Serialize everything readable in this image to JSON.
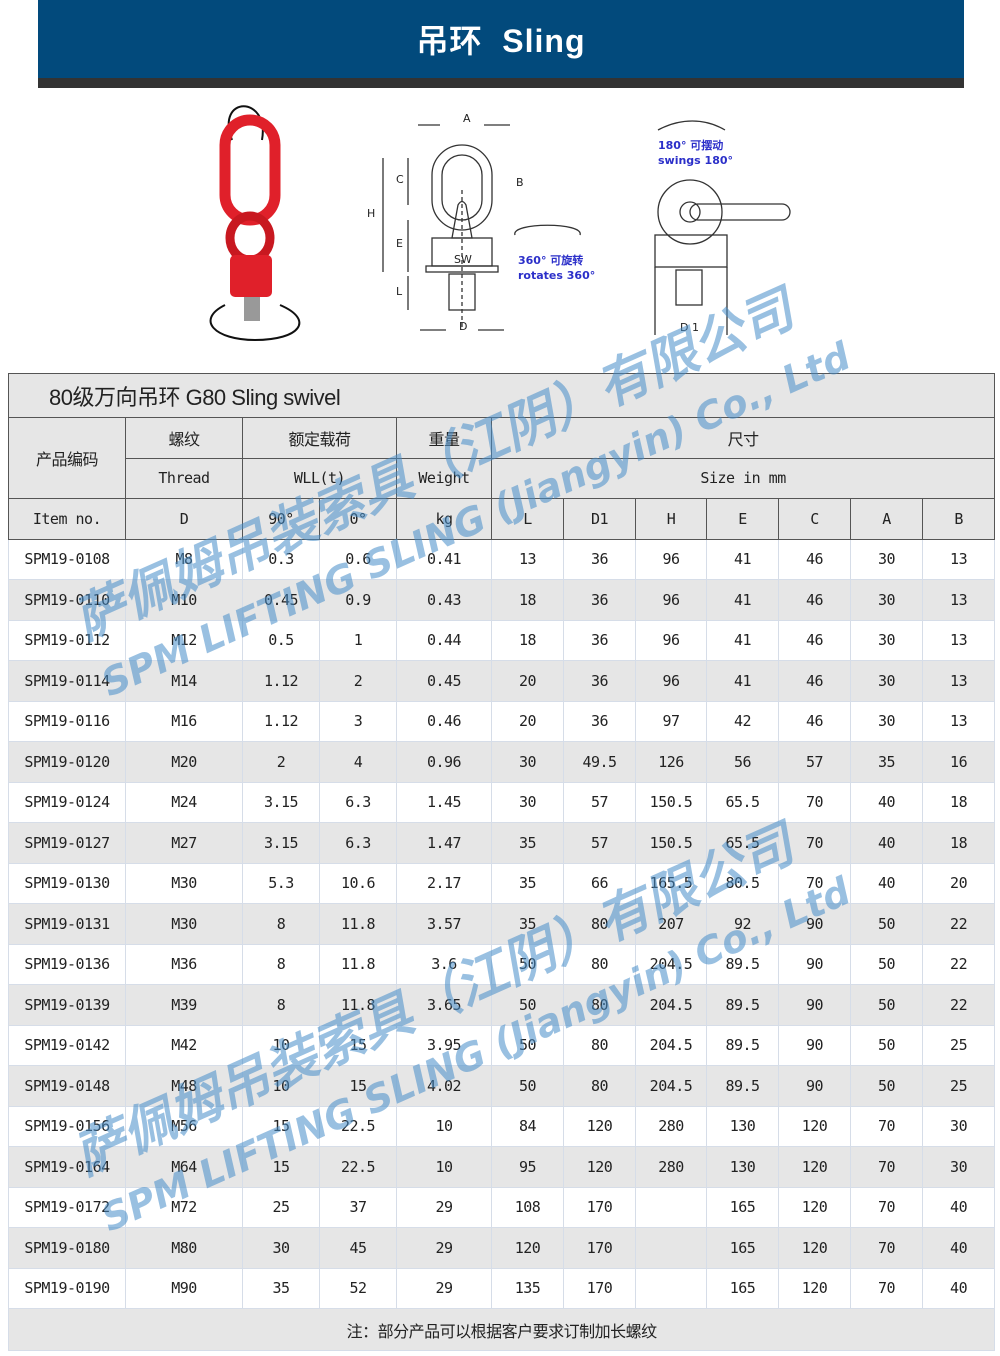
{
  "banner": {
    "title": "吊环  Sling"
  },
  "figures": {
    "dims": {
      "A": "A",
      "B": "B",
      "C": "C",
      "H": "H",
      "E": "E",
      "SW": "SW",
      "L": "L",
      "D": "D",
      "D1": "D 1"
    },
    "rotate_cn": "360°  可旋转",
    "rotate_en": "rotates 360°",
    "swing_cn": "180°  可摆动",
    "swing_en": "swings 180°",
    "colors": {
      "product": "#e0202a",
      "annotation": "#2b2fc9"
    }
  },
  "table": {
    "title": "80级万向吊环 G80 Sling swivel",
    "headers": {
      "code_cn": "产品编码",
      "thread_cn": "螺纹",
      "wll_cn": "额定载荷",
      "weight_cn": "重量",
      "size_cn": "尺寸",
      "thread_en": "Thread",
      "wll_en": "WLL(t)",
      "weight_en": "Weight",
      "size_en": "Size in mm",
      "item": "Item no.",
      "d": "D",
      "deg90": "90°",
      "deg0": "0°",
      "kg": "kg",
      "cols": [
        "L",
        "D1",
        "H",
        "E",
        "C",
        "A",
        "B"
      ]
    },
    "rows": [
      [
        "SPM19-0108",
        "M8",
        "0.3",
        "0.6",
        "0.41",
        "13",
        "36",
        "96",
        "41",
        "46",
        "30",
        "13"
      ],
      [
        "SPM19-0110",
        "M10",
        "0.45",
        "0.9",
        "0.43",
        "18",
        "36",
        "96",
        "41",
        "46",
        "30",
        "13"
      ],
      [
        "SPM19-0112",
        "M12",
        "0.5",
        "1",
        "0.44",
        "18",
        "36",
        "96",
        "41",
        "46",
        "30",
        "13"
      ],
      [
        "SPM19-0114",
        "M14",
        "1.12",
        "2",
        "0.45",
        "20",
        "36",
        "96",
        "41",
        "46",
        "30",
        "13"
      ],
      [
        "SPM19-0116",
        "M16",
        "1.12",
        "3",
        "0.46",
        "20",
        "36",
        "97",
        "42",
        "46",
        "30",
        "13"
      ],
      [
        "SPM19-0120",
        "M20",
        "2",
        "4",
        "0.96",
        "30",
        "49.5",
        "126",
        "56",
        "57",
        "35",
        "16"
      ],
      [
        "SPM19-0124",
        "M24",
        "3.15",
        "6.3",
        "1.45",
        "30",
        "57",
        "150.5",
        "65.5",
        "70",
        "40",
        "18"
      ],
      [
        "SPM19-0127",
        "M27",
        "3.15",
        "6.3",
        "1.47",
        "35",
        "57",
        "150.5",
        "65.5",
        "70",
        "40",
        "18"
      ],
      [
        "SPM19-0130",
        "M30",
        "5.3",
        "10.6",
        "2.17",
        "35",
        "66",
        "165.5",
        "80.5",
        "70",
        "40",
        "20"
      ],
      [
        "SPM19-0131",
        "M30",
        "8",
        "11.8",
        "3.57",
        "35",
        "80",
        "207",
        "92",
        "90",
        "50",
        "22"
      ],
      [
        "SPM19-0136",
        "M36",
        "8",
        "11.8",
        "3.6",
        "50",
        "80",
        "204.5",
        "89.5",
        "90",
        "50",
        "22"
      ],
      [
        "SPM19-0139",
        "M39",
        "8",
        "11.8",
        "3.65",
        "50",
        "80",
        "204.5",
        "89.5",
        "90",
        "50",
        "22"
      ],
      [
        "SPM19-0142",
        "M42",
        "10",
        "15",
        "3.95",
        "50",
        "80",
        "204.5",
        "89.5",
        "90",
        "50",
        "25"
      ],
      [
        "SPM19-0148",
        "M48",
        "10",
        "15",
        "4.02",
        "50",
        "80",
        "204.5",
        "89.5",
        "90",
        "50",
        "25"
      ],
      [
        "SPM19-0156",
        "M56",
        "15",
        "22.5",
        "10",
        "84",
        "120",
        "280",
        "130",
        "120",
        "70",
        "30"
      ],
      [
        "SPM19-0164",
        "M64",
        "15",
        "22.5",
        "10",
        "95",
        "120",
        "280",
        "130",
        "120",
        "70",
        "30"
      ],
      [
        "SPM19-0172",
        "M72",
        "25",
        "37",
        "29",
        "108",
        "170",
        "",
        "165",
        "120",
        "70",
        "40"
      ],
      [
        "SPM19-0180",
        "M80",
        "30",
        "45",
        "29",
        "120",
        "170",
        "",
        "165",
        "120",
        "70",
        "40"
      ],
      [
        "SPM19-0190",
        "M90",
        "35",
        "52",
        "29",
        "135",
        "170",
        "",
        "165",
        "120",
        "70",
        "40"
      ]
    ],
    "note": "注：部分产品可以根据客户要求订制加长螺纹"
  },
  "watermark": {
    "cn": "萨佩姆吊装索具（江阴）有限公司",
    "en": "SPM LIFTING SLING (Jiangyin) Co., Ltd"
  }
}
